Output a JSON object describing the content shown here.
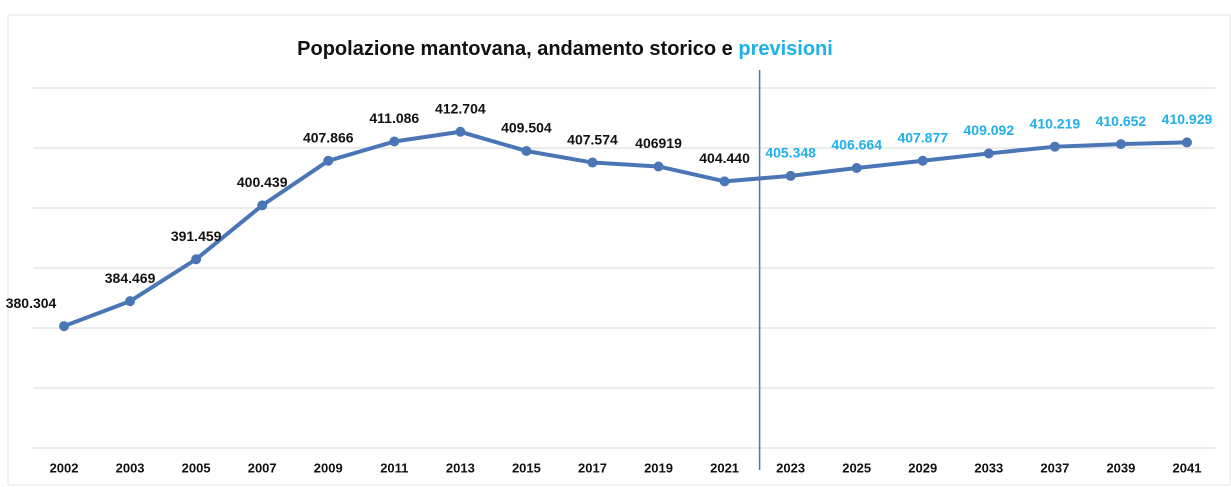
{
  "chart_data": {
    "type": "line",
    "title": "Popolazione mantovana, andamento storico e",
    "title_highlight": "previsioni",
    "categories": [
      "2002",
      "2003",
      "2005",
      "2007",
      "2009",
      "2011",
      "2013",
      "2015",
      "2017",
      "2019",
      "2021",
      "2023",
      "2025",
      "2029",
      "2033",
      "2037",
      "2039",
      "2041"
    ],
    "values": [
      380304,
      384469,
      391459,
      400439,
      407866,
      411086,
      412704,
      409504,
      407574,
      406919,
      404440,
      405348,
      406664,
      407877,
      409092,
      410219,
      410652,
      410929
    ],
    "value_labels": [
      "380.304",
      "384.469",
      "391.459",
      "400.439",
      "407.866",
      "411.086",
      "412.704",
      "409.504",
      "407.574",
      "406919",
      "404.440",
      "405.348",
      "406.664",
      "407.877",
      "409.092",
      "410.219",
      "410.652",
      "410.929"
    ],
    "color": "#4a76b5",
    "label_color": "#111111",
    "forecast_color": "#1fb0ea",
    "forecast_start_index": 11,
    "ylim": [
      360000,
      420000
    ],
    "yticks": [
      360000,
      370000,
      380000,
      390000,
      400000,
      410000,
      420000
    ],
    "grid": true
  }
}
